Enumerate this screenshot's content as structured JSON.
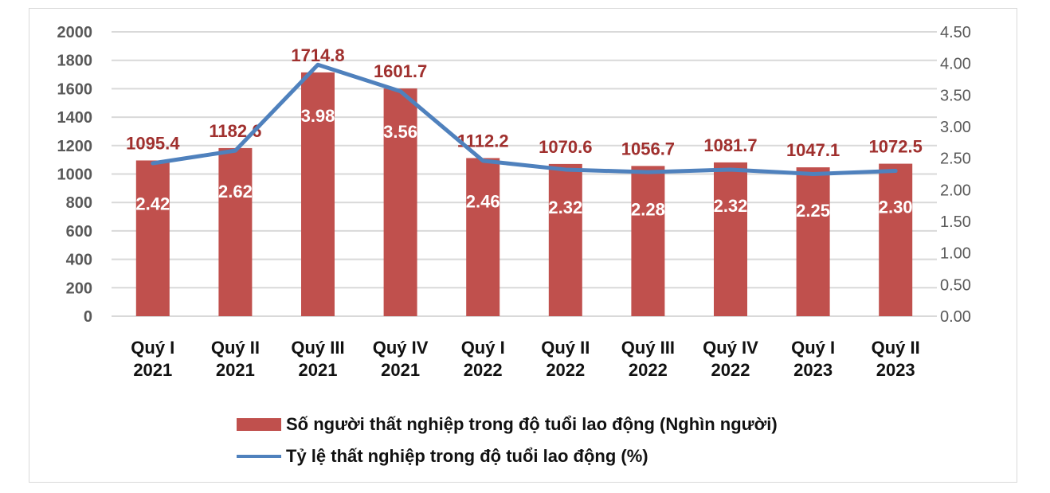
{
  "chart_data": {
    "type": "bar+line",
    "title": "",
    "categories": [
      "Quý I 2021",
      "Quý II 2021",
      "Quý III 2021",
      "Quý IV 2021",
      "Quý I 2022",
      "Quý II 2022",
      "Quý III 2022",
      "Quý IV 2022",
      "Quý I 2023",
      "Quý II 2023"
    ],
    "category_lines": [
      [
        "Quý I",
        "2021"
      ],
      [
        "Quý II",
        "2021"
      ],
      [
        "Quý III",
        "2021"
      ],
      [
        "Quý IV",
        "2021"
      ],
      [
        "Quý I",
        "2022"
      ],
      [
        "Quý II",
        "2022"
      ],
      [
        "Quý III",
        "2022"
      ],
      [
        "Quý IV",
        "2022"
      ],
      [
        "Quý I",
        "2023"
      ],
      [
        "Quý II",
        "2023"
      ]
    ],
    "series": [
      {
        "name": "Số người thất nghiệp trong độ tuổi lao động (Nghìn người)",
        "type": "bar",
        "axis": "left",
        "color": "#c0504d",
        "values": [
          1095.4,
          1182.6,
          1714.8,
          1601.7,
          1112.2,
          1070.6,
          1056.7,
          1081.7,
          1047.1,
          1072.5
        ],
        "labels": [
          "1095.4",
          "1182.6",
          "1714.8",
          "1601.7",
          "1112.2",
          "1070.6",
          "1056.7",
          "1081.7",
          "1047.1",
          "1072.5"
        ]
      },
      {
        "name": "Tỷ lệ thất nghiệp trong độ tuổi lao động (%)",
        "type": "line",
        "axis": "right",
        "color": "#4f81bd",
        "values": [
          2.42,
          2.62,
          3.98,
          3.56,
          2.46,
          2.32,
          2.28,
          2.32,
          2.25,
          2.3
        ],
        "labels": [
          "2.42",
          "2.62",
          "3.98",
          "3.56",
          "2.46",
          "2.32",
          "2.28",
          "2.32",
          "2.25",
          "2.30"
        ]
      }
    ],
    "y_left": {
      "min": 0,
      "max": 2000,
      "step": 200,
      "ticks": [
        "0",
        "200",
        "400",
        "600",
        "800",
        "1000",
        "1200",
        "1400",
        "1600",
        "1800",
        "2000"
      ]
    },
    "y_right": {
      "min": 0,
      "max": 4.5,
      "step": 0.5,
      "ticks": [
        "0.00",
        "0.50",
        "1.00",
        "1.50",
        "2.00",
        "2.50",
        "3.00",
        "3.50",
        "4.00",
        "4.50"
      ]
    },
    "grid": true,
    "legend_position": "bottom"
  },
  "legend": {
    "bar_label": "Số người thất nghiệp trong độ tuổi lao động (Nghìn người)",
    "line_label": "Tỷ lệ thất nghiệp trong độ tuổi lao động (%)"
  }
}
